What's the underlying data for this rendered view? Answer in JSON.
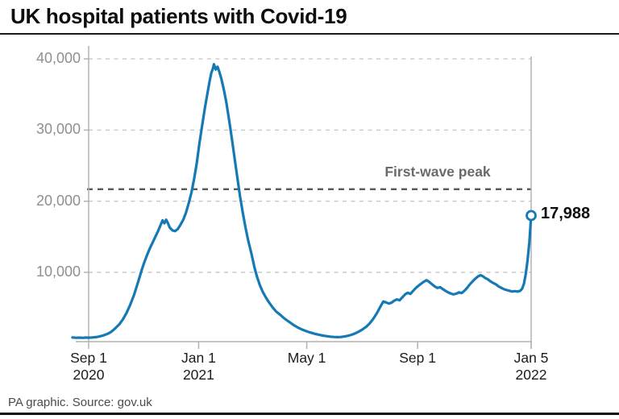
{
  "header": {
    "title": "UK hospital patients with Covid-19"
  },
  "footer": {
    "credit": "PA graphic. Source: gov.uk"
  },
  "annotations": {
    "first_wave_peak_label": "First-wave peak",
    "endpoint_label": "17,988"
  },
  "colors": {
    "line": "#1579b5",
    "grid": "#c8c8c8",
    "dark_dashed": "#585858",
    "axis": "#b2b2b2",
    "y_label": "#8f8f8f",
    "x_label": "#1c1c1c",
    "annotation_text": "#6a6a6a",
    "marker_fill": "#ffffff"
  },
  "chart_data": {
    "type": "line",
    "title": "UK hospital patients with Covid-19",
    "grid": "horizontal-dashed",
    "legend": "none",
    "x_axis": {
      "unit": "date (days since 1 Sep 2020)",
      "day_range": [
        0,
        491
      ],
      "ticks": [
        {
          "day": 0,
          "label": "Sep 1",
          "sublabel": "2020"
        },
        {
          "day": 122,
          "label": "Jan 1",
          "sublabel": "2021"
        },
        {
          "day": 242,
          "label": "May 1"
        },
        {
          "day": 365,
          "label": "Sep 1"
        },
        {
          "day": 491,
          "label": "Jan 5",
          "sublabel": "2022"
        }
      ]
    },
    "y_axis": {
      "range": [
        0,
        41000
      ],
      "ticks": [
        {
          "value": 40000,
          "label": "40,000"
        },
        {
          "value": 30000,
          "label": "30,000"
        },
        {
          "value": 20000,
          "label": "20,000"
        },
        {
          "value": 10000,
          "label": "10,000"
        }
      ]
    },
    "annotations": {
      "first_wave_peak": {
        "label": "First-wave peak",
        "value": 21684,
        "style": "dark-dashed-horizontal-line"
      },
      "endpoint": {
        "label": "17,988",
        "day": 491,
        "value": 17988,
        "marker": "open-circle"
      }
    },
    "series": [
      {
        "name": "Patients in hospital with Covid-19",
        "color": "#1579b5",
        "points": [
          [
            -18,
            850
          ],
          [
            -14,
            800
          ],
          [
            -10,
            830
          ],
          [
            -6,
            790
          ],
          [
            -3,
            840
          ],
          [
            0,
            820
          ],
          [
            4,
            850
          ],
          [
            8,
            900
          ],
          [
            12,
            980
          ],
          [
            16,
            1120
          ],
          [
            20,
            1300
          ],
          [
            24,
            1550
          ],
          [
            27,
            1850
          ],
          [
            30,
            2200
          ],
          [
            34,
            2700
          ],
          [
            38,
            3400
          ],
          [
            42,
            4300
          ],
          [
            46,
            5400
          ],
          [
            50,
            6700
          ],
          [
            53,
            7900
          ],
          [
            56,
            9100
          ],
          [
            59,
            10400
          ],
          [
            62,
            11500
          ],
          [
            65,
            12500
          ],
          [
            68,
            13400
          ],
          [
            71,
            14200
          ],
          [
            74,
            15000
          ],
          [
            77,
            15800
          ],
          [
            80,
            16700
          ],
          [
            82,
            17300
          ],
          [
            84,
            16900
          ],
          [
            86,
            17400
          ],
          [
            88,
            16900
          ],
          [
            90,
            16300
          ],
          [
            93,
            15900
          ],
          [
            96,
            15800
          ],
          [
            99,
            16100
          ],
          [
            102,
            16700
          ],
          [
            105,
            17400
          ],
          [
            108,
            18400
          ],
          [
            111,
            19700
          ],
          [
            114,
            21200
          ],
          [
            117,
            23100
          ],
          [
            120,
            25400
          ],
          [
            123,
            28200
          ],
          [
            126,
            30700
          ],
          [
            129,
            33100
          ],
          [
            132,
            35300
          ],
          [
            134,
            36700
          ],
          [
            136,
            38000
          ],
          [
            138,
            38700
          ],
          [
            139,
            39250
          ],
          [
            141,
            38500
          ],
          [
            143,
            38900
          ],
          [
            145,
            38200
          ],
          [
            147,
            37300
          ],
          [
            150,
            35700
          ],
          [
            153,
            33700
          ],
          [
            156,
            31300
          ],
          [
            159,
            28700
          ],
          [
            162,
            26000
          ],
          [
            165,
            23300
          ],
          [
            168,
            20700
          ],
          [
            171,
            18400
          ],
          [
            174,
            16300
          ],
          [
            177,
            14500
          ],
          [
            181,
            12400
          ],
          [
            184,
            10700
          ],
          [
            187,
            9300
          ],
          [
            190,
            8200
          ],
          [
            193,
            7300
          ],
          [
            196,
            6600
          ],
          [
            200,
            5800
          ],
          [
            204,
            5100
          ],
          [
            208,
            4500
          ],
          [
            212,
            4100
          ],
          [
            216,
            3650
          ],
          [
            220,
            3250
          ],
          [
            224,
            2900
          ],
          [
            228,
            2550
          ],
          [
            232,
            2250
          ],
          [
            236,
            2000
          ],
          [
            240,
            1800
          ],
          [
            244,
            1620
          ],
          [
            248,
            1470
          ],
          [
            252,
            1330
          ],
          [
            256,
            1210
          ],
          [
            260,
            1110
          ],
          [
            264,
            1030
          ],
          [
            268,
            960
          ],
          [
            272,
            920
          ],
          [
            276,
            900
          ],
          [
            280,
            915
          ],
          [
            284,
            980
          ],
          [
            288,
            1090
          ],
          [
            292,
            1240
          ],
          [
            296,
            1440
          ],
          [
            300,
            1690
          ],
          [
            304,
            1990
          ],
          [
            308,
            2360
          ],
          [
            312,
            2850
          ],
          [
            316,
            3500
          ],
          [
            320,
            4300
          ],
          [
            324,
            5250
          ],
          [
            327,
            5900
          ],
          [
            330,
            5780
          ],
          [
            333,
            5620
          ],
          [
            336,
            5730
          ],
          [
            339,
            6010
          ],
          [
            342,
            6200
          ],
          [
            345,
            6080
          ],
          [
            348,
            6480
          ],
          [
            351,
            6900
          ],
          [
            354,
            7120
          ],
          [
            357,
            6980
          ],
          [
            360,
            7380
          ],
          [
            363,
            7800
          ],
          [
            366,
            8120
          ],
          [
            369,
            8420
          ],
          [
            372,
            8690
          ],
          [
            375,
            8900
          ],
          [
            378,
            8640
          ],
          [
            381,
            8320
          ],
          [
            384,
            8020
          ],
          [
            387,
            7810
          ],
          [
            390,
            7920
          ],
          [
            393,
            7640
          ],
          [
            396,
            7400
          ],
          [
            399,
            7180
          ],
          [
            402,
            7010
          ],
          [
            405,
            6900
          ],
          [
            408,
            7010
          ],
          [
            411,
            7190
          ],
          [
            414,
            7090
          ],
          [
            417,
            7420
          ],
          [
            420,
            7820
          ],
          [
            423,
            8320
          ],
          [
            426,
            8720
          ],
          [
            429,
            9110
          ],
          [
            432,
            9420
          ],
          [
            435,
            9600
          ],
          [
            438,
            9410
          ],
          [
            440,
            9210
          ],
          [
            443,
            9010
          ],
          [
            446,
            8720
          ],
          [
            449,
            8510
          ],
          [
            452,
            8310
          ],
          [
            455,
            8010
          ],
          [
            458,
            7810
          ],
          [
            461,
            7620
          ],
          [
            464,
            7510
          ],
          [
            467,
            7410
          ],
          [
            470,
            7310
          ],
          [
            473,
            7360
          ],
          [
            476,
            7300
          ],
          [
            479,
            7420
          ],
          [
            481,
            7700
          ],
          [
            483,
            8420
          ],
          [
            485,
            9750
          ],
          [
            487,
            11650
          ],
          [
            489,
            14250
          ],
          [
            491,
            17988
          ]
        ]
      }
    ]
  }
}
